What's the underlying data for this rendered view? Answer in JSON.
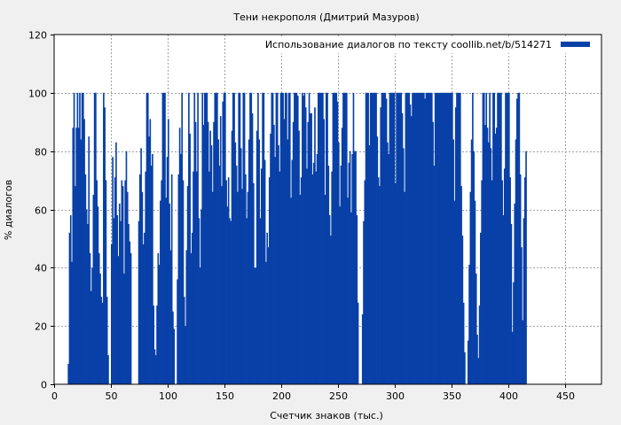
{
  "chart_data": {
    "type": "bar",
    "title": "Тени некрополя (Дмитрий Мазуров)",
    "xlabel": "Счетчик знаков (тыс.)",
    "ylabel": "% диалогов",
    "xlim": [
      0,
      482
    ],
    "ylim": [
      0,
      120
    ],
    "xticks": [
      0,
      50,
      100,
      150,
      200,
      250,
      300,
      350,
      400,
      450
    ],
    "yticks": [
      0,
      20,
      40,
      60,
      80,
      100,
      120
    ],
    "grid": true,
    "legend_position": "top-right",
    "series": [
      {
        "name": "Использование диалогов по тексту  coollib.net/b/514271",
        "color": "#0840a8",
        "bin_width": 1,
        "x_start": 12,
        "values": [
          7,
          52,
          58,
          42,
          88,
          100,
          68,
          88,
          100,
          88,
          100,
          84,
          100,
          100,
          91,
          72,
          60,
          55,
          85,
          45,
          32,
          40,
          65,
          100,
          100,
          70,
          61,
          45,
          38,
          30,
          28,
          100,
          95,
          70,
          30,
          10,
          0,
          0,
          48,
          78,
          57,
          71,
          83,
          58,
          44,
          62,
          56,
          70,
          68,
          38,
          70,
          80,
          66,
          55,
          49,
          45,
          0,
          0,
          0,
          0,
          0,
          0,
          56,
          72,
          81,
          66,
          48,
          52,
          73,
          100,
          100,
          85,
          91,
          75,
          79,
          27,
          12,
          10,
          27,
          45,
          41,
          63,
          70,
          100,
          100,
          100,
          64,
          78,
          91,
          62,
          46,
          72,
          25,
          19,
          0,
          0,
          36,
          72,
          88,
          79,
          100,
          70,
          30,
          20,
          46,
          68,
          100,
          86,
          45,
          52,
          73,
          100,
          90,
          73,
          100,
          57,
          40,
          60,
          100,
          89,
          100,
          100,
          100,
          90,
          73,
          87,
          82,
          66,
          90,
          100,
          100,
          100,
          84,
          75,
          92,
          68,
          97,
          100,
          100,
          70,
          61,
          71,
          57,
          56,
          87,
          100,
          100,
          83,
          75,
          66,
          100,
          100,
          81,
          67,
          100,
          100,
          72,
          57,
          66,
          84,
          100,
          100,
          93,
          69,
          40,
          40,
          87,
          100,
          84,
          57,
          74,
          100,
          100,
          77,
          42,
          52,
          47,
          71,
          86,
          100,
          100,
          89,
          78,
          100,
          100,
          82,
          73,
          100,
          100,
          100,
          91,
          100,
          100,
          84,
          100,
          100,
          64,
          77,
          90,
          100,
          100,
          100,
          99,
          87,
          65,
          71,
          100,
          99,
          100,
          95,
          74,
          90,
          100,
          93,
          93,
          72,
          76,
          95,
          73,
          79,
          100,
          100,
          100,
          100,
          100,
          91,
          65,
          100,
          100,
          75,
          58,
          51,
          73,
          100,
          100,
          100,
          100,
          97,
          83,
          61,
          75,
          88,
          100,
          100,
          100,
          100,
          64,
          76,
          80,
          59,
          79,
          100,
          80,
          80,
          58,
          28,
          0,
          0,
          0,
          24,
          56,
          70,
          100,
          100,
          100,
          82,
          100,
          100,
          100,
          100,
          100,
          100,
          85,
          71,
          68,
          95,
          100,
          100,
          100,
          100,
          98,
          83,
          79,
          100,
          100,
          100,
          100,
          100,
          69,
          100,
          100,
          100,
          100,
          100,
          93,
          81,
          66,
          100,
          100,
          100,
          100,
          96,
          92,
          100,
          100,
          100,
          100,
          100,
          100,
          100,
          100,
          100,
          100,
          100,
          98,
          100,
          100,
          100,
          100,
          100,
          100,
          90,
          75,
          100,
          100,
          100,
          100,
          100,
          100,
          100,
          100,
          100,
          100,
          100,
          100,
          100,
          100,
          100,
          100,
          84,
          63,
          95,
          100,
          100,
          100,
          100,
          68,
          51,
          28,
          11,
          0,
          0,
          15,
          41,
          66,
          84,
          100,
          80,
          63,
          38,
          17,
          9,
          27,
          52,
          70,
          100,
          100,
          89,
          100,
          88,
          83,
          100,
          81,
          70,
          100,
          100,
          86,
          88,
          100,
          100,
          100,
          100,
          70,
          58,
          74,
          100,
          100,
          100,
          100,
          71,
          55,
          18,
          35,
          62,
          84,
          98,
          100,
          100,
          72,
          47,
          22,
          57,
          71,
          80
        ]
      }
    ]
  }
}
